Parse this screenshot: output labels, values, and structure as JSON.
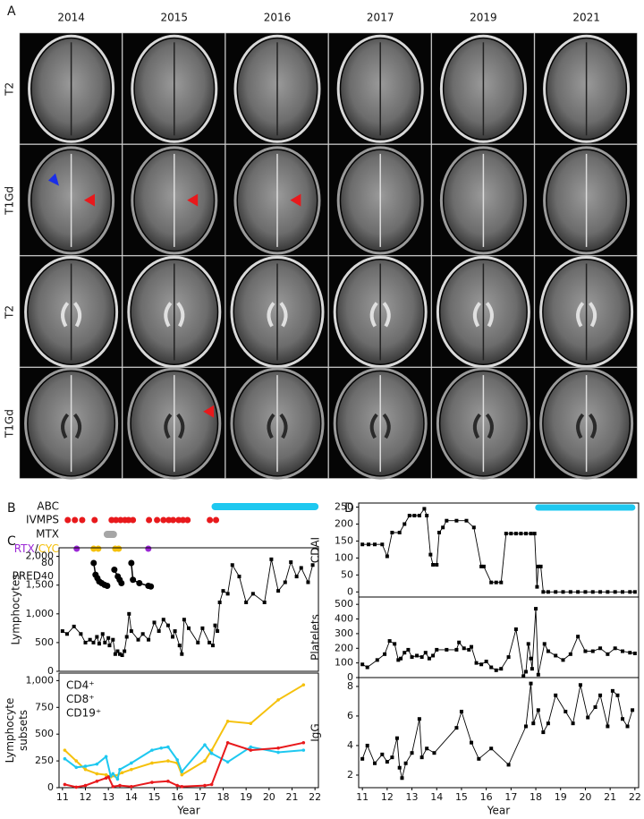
{
  "panels": {
    "a": "A",
    "b": "B",
    "c": "C",
    "d": "D"
  },
  "mri": {
    "years": [
      "2014",
      "2015",
      "2016",
      "2017",
      "2019",
      "2021"
    ],
    "rows": [
      "T2",
      "T1Gd",
      "T2",
      "T1Gd"
    ]
  },
  "chart_data": [
    {
      "type": "timeline",
      "xlim": [
        10.85,
        22.15
      ],
      "ylim": [
        0,
        80
      ],
      "yticks": [
        40,
        80
      ],
      "label_separator": "/",
      "series": [
        {
          "name": "ABC",
          "color": "#1ec8f0",
          "start": 17.65,
          "end": 22
        },
        {
          "name": "IVMPS",
          "color": "#e8191c",
          "x": [
            11.23,
            11.54,
            11.86,
            12.4,
            13.14,
            13.33,
            13.53,
            13.72,
            13.88,
            14.07,
            14.77,
            15.12,
            15.4,
            15.63,
            15.82,
            16.06,
            16.25,
            16.45,
            17.42,
            17.69
          ]
        },
        {
          "name": "MTX",
          "color": "#a6a6a6",
          "start": 12.95,
          "end": 13.22
        },
        {
          "name": "RTX",
          "color": "#9b27d6",
          "x": [
            11.62,
            14.74
          ]
        },
        {
          "name": "CYC",
          "color": "#f5c10c",
          "x": [
            12.36,
            12.56,
            13.3,
            13.45
          ]
        },
        {
          "name": "PRED",
          "color": "#000000",
          "x": [
            12.36,
            12.44,
            12.52,
            12.6,
            12.71,
            12.83,
            12.95,
            null,
            13.26,
            13.41,
            13.49,
            13.57,
            null,
            14.0,
            14.07,
            14.35,
            14.74,
            14.85
          ],
          "values": [
            80,
            45,
            35,
            25,
            20,
            15,
            12,
            null,
            60,
            40,
            30,
            20,
            null,
            80,
            30,
            20,
            12,
            10
          ]
        }
      ]
    },
    {
      "type": "line",
      "ylabel": "Lymphocytes",
      "xlim": [
        10.85,
        22.15
      ],
      "ylim": [
        0,
        2150
      ],
      "yticks": [
        0,
        500,
        {
          "value": 1000,
          "label": "1,000"
        },
        {
          "value": 1500,
          "label": "1,500"
        },
        {
          "value": 2000,
          "label": "2,000"
        }
      ],
      "marker": "square",
      "series": [
        {
          "color": "#000000",
          "x": [
            11.0,
            11.2,
            11.5,
            11.8,
            12.0,
            12.2,
            12.35,
            12.5,
            12.6,
            12.75,
            12.85,
            13.0,
            13.05,
            13.2,
            13.3,
            13.4,
            13.5,
            13.6,
            13.7,
            13.8,
            13.9,
            14.0,
            14.3,
            14.5,
            14.75,
            15.0,
            15.2,
            15.4,
            15.6,
            15.8,
            15.9,
            16.1,
            16.2,
            16.3,
            16.5,
            16.9,
            17.1,
            17.4,
            17.55,
            17.65,
            17.75,
            17.85,
            18.0,
            18.2,
            18.4,
            18.7,
            19.0,
            19.3,
            19.8,
            20.1,
            20.4,
            20.7,
            20.95,
            21.2,
            21.4,
            21.7,
            21.9
          ],
          "values": [
            700,
            650,
            780,
            650,
            500,
            550,
            500,
            600,
            480,
            650,
            500,
            580,
            450,
            550,
            300,
            350,
            300,
            280,
            350,
            600,
            1000,
            700,
            550,
            650,
            550,
            850,
            700,
            900,
            800,
            600,
            700,
            450,
            300,
            900,
            750,
            500,
            750,
            500,
            450,
            800,
            700,
            1200,
            1400,
            1350,
            1850,
            1650,
            1200,
            1350,
            1200,
            1950,
            1400,
            1550,
            1900,
            1650,
            1800,
            1550,
            1850
          ]
        }
      ]
    },
    {
      "type": "line",
      "ylabel": "Lymphocyte subsets",
      "xlabel": "Year",
      "xlim": [
        10.85,
        22.15
      ],
      "ylim": [
        0,
        1070
      ],
      "yticks": [
        0,
        250,
        500,
        750,
        {
          "value": 1000,
          "label": "1,000"
        }
      ],
      "xticks": [
        11,
        12,
        13,
        14,
        15,
        16,
        17,
        18,
        19,
        20,
        21,
        22
      ],
      "marker": "circle",
      "legend": "upper left",
      "series": [
        {
          "name": "CD4⁺",
          "color": "#f5c10c",
          "x": [
            11.1,
            11.6,
            12.0,
            12.5,
            12.9,
            13.1,
            13.3,
            13.6,
            14.0,
            14.9,
            15.6,
            16.0,
            16.2,
            17.2,
            17.5,
            18.2,
            19.2,
            20.4,
            21.5
          ],
          "values": [
            350,
            250,
            170,
            130,
            120,
            100,
            110,
            140,
            170,
            230,
            250,
            230,
            120,
            250,
            350,
            620,
            600,
            820,
            960
          ]
        },
        {
          "name": "CD8⁺",
          "color": "#1ec8f0",
          "x": [
            11.1,
            11.6,
            12.0,
            12.5,
            12.9,
            13.1,
            13.2,
            13.4,
            13.5,
            14.0,
            14.9,
            15.3,
            15.6,
            16.0,
            16.2,
            17.2,
            17.5,
            18.2,
            19.2,
            20.4,
            21.5
          ],
          "values": [
            270,
            190,
            200,
            220,
            290,
            110,
            130,
            80,
            170,
            230,
            350,
            370,
            380,
            260,
            150,
            400,
            320,
            240,
            380,
            330,
            350
          ]
        },
        {
          "name": "CD19⁺",
          "color": "#e8191c",
          "x": [
            11.1,
            11.6,
            12.0,
            12.5,
            12.9,
            13.0,
            13.2,
            13.5,
            14.0,
            14.9,
            15.6,
            16.0,
            16.2,
            17.2,
            17.5,
            18.2,
            19.2,
            20.4,
            21.5
          ],
          "values": [
            30,
            5,
            20,
            60,
            90,
            100,
            10,
            20,
            10,
            50,
            60,
            20,
            10,
            20,
            30,
            420,
            350,
            370,
            420
          ]
        }
      ]
    },
    {
      "type": "line",
      "ylabel": "CDAI",
      "xlim": [
        10.85,
        22.15
      ],
      "ylim": [
        -15,
        262
      ],
      "yticks": [
        0,
        50,
        100,
        150,
        200,
        250
      ],
      "marker": "square",
      "highlight": {
        "color": "#1ec8f0",
        "start": 18.1,
        "end": 22
      },
      "series": [
        {
          "color": "#000000",
          "x": [
            11.0,
            11.25,
            11.5,
            11.8,
            12.0,
            12.2,
            12.5,
            12.7,
            12.9,
            13.1,
            13.3,
            13.5,
            13.6,
            13.75,
            13.85,
            14.0,
            14.1,
            14.25,
            14.4,
            14.8,
            15.2,
            15.5,
            15.8,
            15.9,
            16.2,
            16.4,
            16.6,
            16.8,
            17.0,
            17.2,
            17.4,
            17.6,
            17.8,
            17.95,
            18.05,
            18.1,
            18.2,
            18.3,
            18.5,
            18.8,
            19.1,
            19.4,
            19.7,
            20.0,
            20.3,
            20.6,
            20.9,
            21.2,
            21.5,
            21.8,
            22.0
          ],
          "values": [
            140,
            140,
            140,
            140,
            105,
            175,
            175,
            200,
            225,
            225,
            225,
            245,
            225,
            110,
            80,
            80,
            175,
            190,
            210,
            210,
            210,
            190,
            75,
            75,
            28,
            28,
            28,
            172,
            172,
            172,
            172,
            172,
            172,
            172,
            15,
            75,
            75,
            0,
            0,
            0,
            0,
            0,
            0,
            0,
            0,
            0,
            0,
            0,
            0,
            0,
            0
          ]
        }
      ]
    },
    {
      "type": "line",
      "ylabel": "Platelets",
      "xlim": [
        10.85,
        22.15
      ],
      "ylim": [
        0,
        550
      ],
      "yticks": [
        0,
        100,
        200,
        300,
        400,
        500
      ],
      "marker": "square",
      "series": [
        {
          "color": "#000000",
          "x": [
            11.0,
            11.2,
            11.6,
            11.9,
            12.1,
            12.3,
            12.45,
            12.55,
            12.7,
            12.85,
            13.0,
            13.2,
            13.4,
            13.55,
            13.7,
            13.85,
            14.0,
            14.4,
            14.8,
            14.9,
            15.1,
            15.3,
            15.4,
            15.6,
            15.8,
            16.0,
            16.2,
            16.4,
            16.6,
            16.9,
            17.2,
            17.5,
            17.6,
            17.7,
            17.8,
            17.85,
            18.0,
            18.1,
            18.35,
            18.5,
            18.8,
            19.1,
            19.4,
            19.7,
            20.0,
            20.3,
            20.6,
            20.9,
            21.2,
            21.5,
            21.8,
            22.0
          ],
          "values": [
            90,
            70,
            120,
            160,
            250,
            230,
            120,
            130,
            170,
            190,
            140,
            150,
            140,
            170,
            130,
            150,
            190,
            190,
            190,
            240,
            200,
            190,
            210,
            100,
            90,
            110,
            70,
            50,
            60,
            140,
            330,
            10,
            40,
            230,
            130,
            60,
            470,
            20,
            230,
            180,
            150,
            120,
            160,
            280,
            180,
            180,
            200,
            160,
            200,
            180,
            170,
            165
          ]
        }
      ]
    },
    {
      "type": "line",
      "ylabel": "IgG",
      "xlabel": "Year",
      "xlim": [
        10.85,
        22.15
      ],
      "ylim": [
        1.15,
        8.6
      ],
      "yticks": [
        2,
        4,
        6,
        8
      ],
      "xticks": [
        11,
        12,
        13,
        14,
        15,
        16,
        17,
        18,
        19,
        20,
        21,
        22
      ],
      "marker": "square",
      "series": [
        {
          "color": "#000000",
          "x": [
            11.0,
            11.2,
            11.5,
            11.8,
            12.0,
            12.2,
            12.4,
            12.5,
            12.6,
            12.75,
            13.0,
            13.3,
            13.4,
            13.6,
            13.9,
            14.8,
            15.0,
            15.4,
            15.7,
            16.2,
            16.9,
            17.6,
            17.8,
            17.9,
            18.1,
            18.3,
            18.5,
            18.8,
            19.2,
            19.5,
            19.8,
            20.1,
            20.4,
            20.6,
            20.9,
            21.1,
            21.3,
            21.5,
            21.7,
            21.9
          ],
          "values": [
            3.1,
            4.0,
            2.8,
            3.4,
            2.9,
            3.2,
            4.5,
            2.5,
            1.8,
            2.8,
            3.5,
            5.8,
            3.2,
            3.8,
            3.5,
            5.2,
            6.3,
            4.2,
            3.1,
            3.8,
            2.7,
            5.3,
            8.2,
            5.5,
            6.4,
            4.9,
            5.5,
            7.4,
            6.3,
            5.5,
            8.1,
            5.9,
            6.6,
            7.4,
            5.3,
            7.7,
            7.4,
            5.8,
            5.3,
            6.4
          ]
        }
      ]
    }
  ]
}
